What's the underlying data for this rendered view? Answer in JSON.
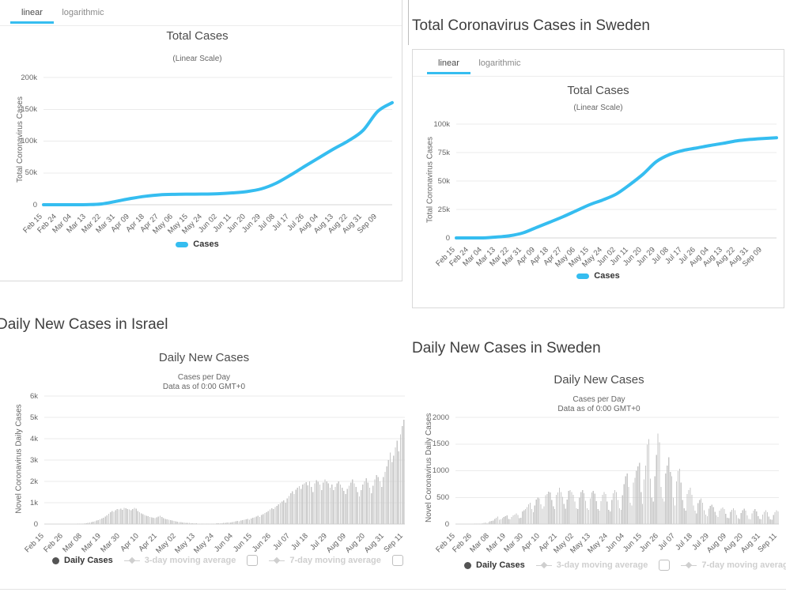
{
  "accent_color": "#35bdf0",
  "bar_color": "#c7c7c7",
  "page": {
    "headings": {
      "sweden_total": "Total Coronavirus Cases in Sweden",
      "israel_daily": "Daily New Cases in Israel",
      "sweden_daily": "Daily New Cases in Sweden"
    }
  },
  "tabs": {
    "linear": "linear",
    "logarithmic": "logarithmic"
  },
  "legend": {
    "cases": "Cases",
    "daily_cases": "Daily Cases",
    "ma3": "3-day moving average",
    "ma7": "7-day moving average"
  },
  "chart_data": [
    {
      "id": "israel_total",
      "type": "line",
      "title": "Total Cases",
      "subtitle": "(Linear Scale)",
      "ylabel": "Total Coronavirus Cases",
      "series_name": "Cases",
      "line_color": "#35bdf0",
      "ylim": [
        0,
        200000
      ],
      "y_tick_values": [
        0,
        50000,
        100000,
        150000,
        200000
      ],
      "y_tick_labels": [
        "0",
        "50k",
        "100k",
        "150k",
        "200k"
      ],
      "x_tick_labels": [
        "Feb 15",
        "Feb 24",
        "Mar 04",
        "Mar 13",
        "Mar 22",
        "Mar 31",
        "Apr 09",
        "Apr 18",
        "Apr 27",
        "May 06",
        "May 15",
        "May 24",
        "Jun 02",
        "Jun 11",
        "Jun 20",
        "Jun 29",
        "Jul 08",
        "Jul 17",
        "Jul 26",
        "Aug 04",
        "Aug 13",
        "Aug 22",
        "Aug 31",
        "Sep 09"
      ],
      "x": [
        "Feb 15",
        "Feb 24",
        "Mar 04",
        "Mar 13",
        "Mar 22",
        "Mar 31",
        "Apr 09",
        "Apr 18",
        "Apr 27",
        "May 06",
        "May 15",
        "May 24",
        "Jun 02",
        "Jun 11",
        "Jun 20",
        "Jun 29",
        "Jul 08",
        "Jul 17",
        "Jul 26",
        "Aug 04",
        "Aug 13",
        "Aug 22",
        "Aug 31",
        "Sep 09",
        "Sep 13"
      ],
      "values": [
        0,
        1,
        15,
        180,
        1240,
        5360,
        9750,
        13270,
        15550,
        16350,
        16620,
        16750,
        17300,
        18600,
        20700,
        25000,
        33700,
        46600,
        60700,
        74400,
        88000,
        100700,
        117000,
        146700,
        160400
      ]
    },
    {
      "id": "sweden_total",
      "type": "line",
      "title": "Total Cases",
      "subtitle": "(Linear Scale)",
      "ylabel": "Total Coronavirus Cases",
      "series_name": "Cases",
      "line_color": "#35bdf0",
      "ylim": [
        0,
        100000
      ],
      "y_tick_values": [
        0,
        25000,
        50000,
        75000,
        100000
      ],
      "y_tick_labels": [
        "0",
        "25k",
        "50k",
        "75k",
        "100k"
      ],
      "x_tick_labels": [
        "Feb 15",
        "Feb 24",
        "Mar 04",
        "Mar 13",
        "Mar 22",
        "Mar 31",
        "Apr 09",
        "Apr 18",
        "Apr 27",
        "May 06",
        "May 15",
        "May 24",
        "Jun 02",
        "Jun 11",
        "Jun 20",
        "Jun 29",
        "Jul 08",
        "Jul 17",
        "Jul 26",
        "Aug 04",
        "Aug 13",
        "Aug 22",
        "Aug 31",
        "Sep 09"
      ],
      "x": [
        "Feb 15",
        "Feb 24",
        "Mar 04",
        "Mar 13",
        "Mar 22",
        "Mar 31",
        "Apr 09",
        "Apr 18",
        "Apr 27",
        "May 06",
        "May 15",
        "May 24",
        "Jun 02",
        "Jun 11",
        "Jun 20",
        "Jun 29",
        "Jul 08",
        "Jul 17",
        "Jul 26",
        "Aug 04",
        "Aug 13",
        "Aug 22",
        "Aug 31",
        "Sep 09",
        "Sep 13"
      ],
      "values": [
        0,
        1,
        15,
        775,
        1930,
        4435,
        9140,
        13820,
        18630,
        23920,
        29210,
        33460,
        38590,
        46800,
        56040,
        67070,
        73340,
        76900,
        79000,
        81180,
        83130,
        85220,
        86510,
        87345,
        88010
      ]
    },
    {
      "id": "israel_daily",
      "type": "bar",
      "title": "Daily New Cases",
      "subtitle": "Cases per Day\nData as of 0:00 GMT+0",
      "ylabel": "Novel Coronavirus Daily Cases",
      "series_name": "Daily Cases",
      "ylim": [
        0,
        6000
      ],
      "y_tick_values": [
        0,
        1000,
        2000,
        3000,
        4000,
        5000,
        6000
      ],
      "y_tick_labels": [
        "0",
        "1k",
        "2k",
        "3k",
        "4k",
        "5k",
        "6k"
      ],
      "x_tick_labels": [
        "Feb 15",
        "Feb 26",
        "Mar 08",
        "Mar 19",
        "Mar 30",
        "Apr 10",
        "Apr 21",
        "May 02",
        "May 13",
        "May 24",
        "Jun 04",
        "Jun 15",
        "Jun 26",
        "Jul 07",
        "Jul 18",
        "Jul 29",
        "Aug 09",
        "Aug 20",
        "Aug 31",
        "Sep 11"
      ],
      "x_tick_every": 11,
      "x_start": "Feb 15",
      "x_end": "Sep 11",
      "values": [
        0,
        0,
        0,
        0,
        0,
        0,
        1,
        1,
        0,
        2,
        1,
        2,
        2,
        3,
        2,
        4,
        6,
        5,
        8,
        12,
        15,
        21,
        25,
        30,
        43,
        58,
        75,
        96,
        112,
        134,
        160,
        190,
        220,
        260,
        305,
        350,
        410,
        480,
        560,
        610,
        580,
        650,
        700,
        690,
        720,
        660,
        760,
        740,
        710,
        680,
        650,
        700,
        765,
        730,
        620,
        560,
        500,
        460,
        430,
        390,
        365,
        330,
        310,
        290,
        270,
        310,
        350,
        390,
        330,
        280,
        250,
        230,
        210,
        190,
        170,
        150,
        130,
        120,
        100,
        90,
        80,
        70,
        60,
        55,
        48,
        40,
        35,
        30,
        28,
        25,
        22,
        20,
        18,
        16,
        15,
        14,
        16,
        18,
        20,
        24,
        28,
        32,
        38,
        45,
        52,
        58,
        65,
        72,
        80,
        95,
        110,
        125,
        140,
        130,
        160,
        180,
        200,
        220,
        240,
        210,
        260,
        290,
        320,
        350,
        380,
        340,
        420,
        460,
        510,
        560,
        620,
        680,
        740,
        700,
        800,
        860,
        920,
        980,
        1050,
        1120,
        1000,
        1200,
        1320,
        1450,
        1530,
        1400,
        1620,
        1700,
        1780,
        1650,
        1850,
        1900,
        1960,
        1820,
        2000,
        1750,
        1500,
        1900,
        2050,
        1980,
        1850,
        1600,
        1950,
        2100,
        2000,
        1900,
        1700,
        1850,
        1600,
        1750,
        1900,
        2000,
        1850,
        1700,
        1550,
        1400,
        1650,
        1800,
        1950,
        2100,
        1900,
        1750,
        1500,
        1300,
        1600,
        1850,
        2000,
        2150,
        1950,
        1700,
        1450,
        1800,
        2100,
        2300,
        2200,
        2000,
        1750,
        2200,
        2450,
        2700,
        3000,
        3350,
        2900,
        3200,
        3600,
        3900,
        3400,
        4200,
        4600,
        4880
      ]
    },
    {
      "id": "sweden_daily",
      "type": "bar",
      "title": "Daily New Cases",
      "subtitle": "Cases per Day\nData as of 0:00 GMT+0",
      "ylabel": "Novel Coronavirus Daily Cases",
      "series_name": "Daily Cases",
      "ylim": [
        0,
        2000
      ],
      "y_tick_values": [
        0,
        500,
        1000,
        1500,
        2000
      ],
      "y_tick_labels": [
        "0",
        "500",
        "1000",
        "1500",
        "2000"
      ],
      "x_tick_labels": [
        "Feb 15",
        "Feb 26",
        "Mar 08",
        "Mar 19",
        "Mar 30",
        "Apr 10",
        "Apr 21",
        "May 02",
        "May 13",
        "May 24",
        "Jun 04",
        "Jun 15",
        "Jun 26",
        "Jul 07",
        "Jul 18",
        "Jul 29",
        "Aug 09",
        "Aug 20",
        "Aug 31",
        "Sep 11"
      ],
      "x_tick_every": 11,
      "x_start": "Feb 15",
      "x_end": "Sep 11",
      "values": [
        0,
        0,
        0,
        0,
        0,
        0,
        0,
        0,
        0,
        0,
        1,
        2,
        4,
        5,
        7,
        8,
        6,
        12,
        20,
        30,
        16,
        38,
        52,
        60,
        70,
        100,
        120,
        140,
        80,
        90,
        110,
        130,
        150,
        160,
        100,
        90,
        130,
        160,
        180,
        200,
        170,
        110,
        120,
        240,
        260,
        280,
        320,
        370,
        400,
        280,
        220,
        350,
        460,
        500,
        480,
        370,
        290,
        330,
        540,
        560,
        610,
        590,
        450,
        330,
        280,
        550,
        590,
        680,
        600,
        510,
        380,
        290,
        460,
        620,
        640,
        600,
        550,
        420,
        300,
        280,
        500,
        600,
        640,
        580,
        440,
        300,
        270,
        480,
        590,
        620,
        570,
        430,
        280,
        250,
        430,
        550,
        600,
        560,
        420,
        270,
        240,
        450,
        580,
        640,
        600,
        450,
        300,
        270,
        540,
        750,
        900,
        950,
        700,
        400,
        350,
        780,
        870,
        1000,
        1080,
        1150,
        600,
        380,
        840,
        1100,
        1490,
        1590,
        850,
        500,
        420,
        900,
        1300,
        1698,
        1530,
        700,
        480,
        420,
        950,
        1100,
        1250,
        980,
        900,
        500,
        350,
        800,
        990,
        1040,
        780,
        450,
        300,
        250,
        560,
        640,
        680,
        550,
        350,
        250,
        200,
        390,
        450,
        480,
        400,
        260,
        180,
        150,
        290,
        340,
        360,
        320,
        230,
        160,
        130,
        250,
        290,
        310,
        280,
        190,
        120,
        110,
        230,
        270,
        300,
        260,
        170,
        110,
        100,
        210,
        260,
        290,
        250,
        160,
        100,
        90,
        200,
        250,
        280,
        240,
        150,
        100,
        90,
        180,
        230,
        260,
        220,
        140,
        90,
        80,
        170,
        220,
        260,
        240
      ]
    }
  ]
}
